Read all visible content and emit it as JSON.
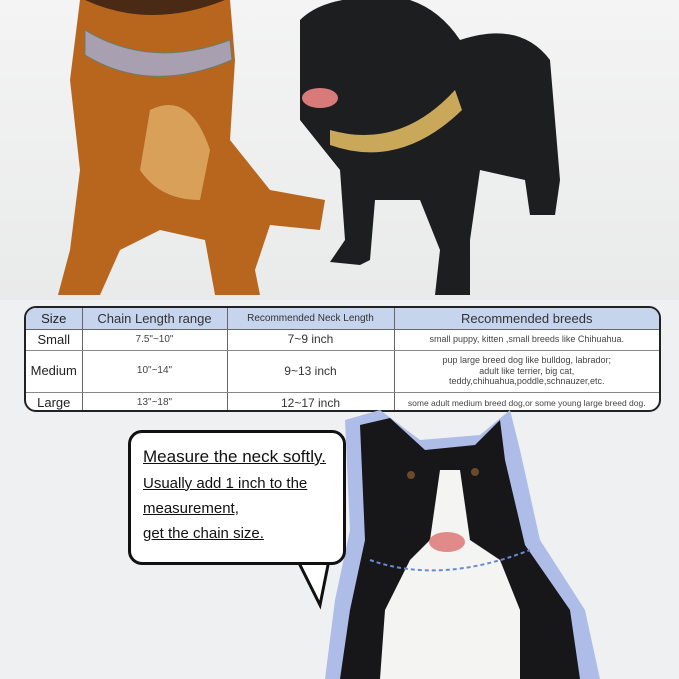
{
  "size_table": {
    "headers": [
      "Size",
      "Chain Length range",
      "Recommended Neck Length",
      "Recommended breeds"
    ],
    "rows": [
      {
        "size": "Small",
        "chain": "7.5\"~10\"",
        "neck": "7~9 inch",
        "breeds": "small puppy, kitten ,small breeds like Chihuahua."
      },
      {
        "size": "Medium",
        "chain": "10\"~14\"",
        "neck": "9~13 inch",
        "breeds": [
          "pup large breed dog like bulldog, labrador;",
          "adult like terrier,  big cat,",
          "teddy,chihuahua,poddle,schnauzer,etc."
        ]
      },
      {
        "size": "Large",
        "chain": "13\"~18\"",
        "neck": "12~17 inch",
        "breeds": "some adult medium breed dog,or some young large breed dog."
      }
    ]
  },
  "callout": {
    "lines": [
      "Measure the neck softly.",
      "Usually add 1 inch to the",
      "measurement,",
      "get the chain size."
    ]
  },
  "colors": {
    "header_bg": "#c6d4ee",
    "dog_halo": "#aebde8"
  }
}
